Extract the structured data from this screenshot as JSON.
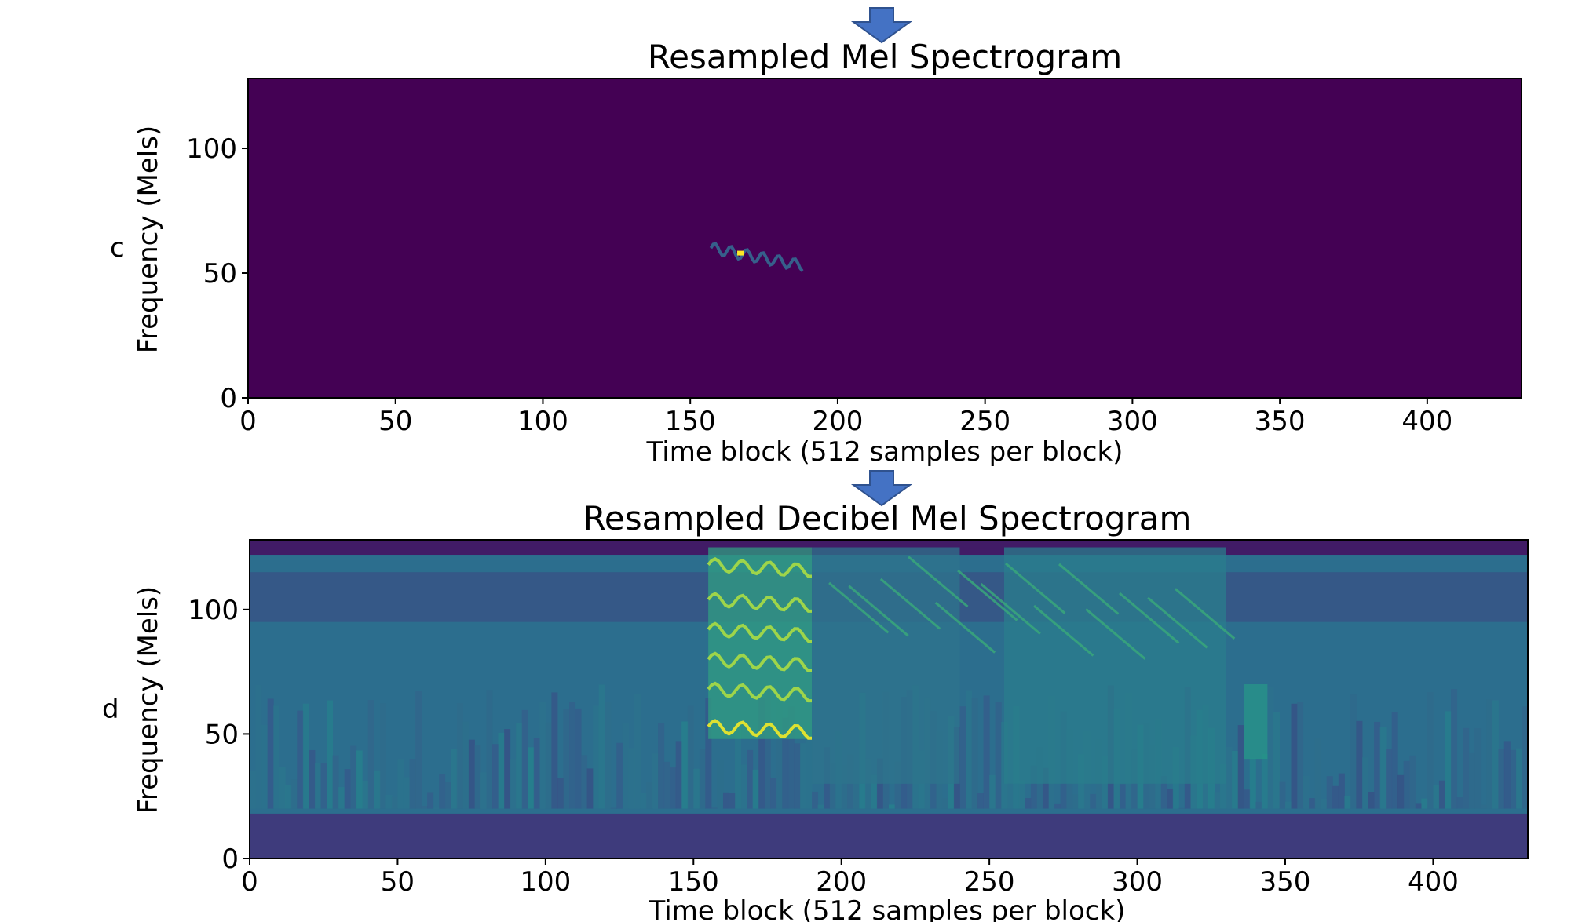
{
  "colors": {
    "arrow": "#4472c4",
    "arrow_stroke": "#2f528f",
    "viridis_dark": "#440154",
    "axis": "#000000"
  },
  "panels": [
    {
      "letter": "c"
    },
    {
      "letter": "d"
    }
  ],
  "chart_data": [
    {
      "type": "heatmap",
      "title": "Resampled Mel Spectrogram",
      "xlabel": "Time block (512 samples per block)",
      "ylabel": "Frequency (Mels)",
      "xlim": [
        0,
        432
      ],
      "ylim": [
        0,
        128
      ],
      "xticks": [
        0,
        50,
        100,
        150,
        200,
        250,
        300,
        350,
        400
      ],
      "yticks": [
        0,
        50,
        100
      ],
      "xtick_labels": [
        "0",
        "50",
        "100",
        "150",
        "200",
        "250",
        "300",
        "350",
        "400"
      ],
      "ytick_labels": [
        "0",
        "50",
        "100"
      ],
      "colormap": "viridis",
      "scale": "linear power",
      "features": [
        {
          "desc": "bird call contour",
          "time_start": 157,
          "time_end": 188,
          "mel_start": 60,
          "mel_end": 53,
          "intensity": 0.9
        },
        {
          "desc": "brief peak",
          "time": 167,
          "mel": 58,
          "intensity": 1.0
        }
      ]
    },
    {
      "type": "heatmap",
      "title": "Resampled Decibel Mel Spectrogram",
      "xlabel": "Time block (512 samples per block)",
      "ylabel": "Frequency (Mels)",
      "xlim": [
        0,
        432
      ],
      "ylim": [
        0,
        128
      ],
      "xticks": [
        0,
        50,
        100,
        150,
        200,
        250,
        300,
        350,
        400
      ],
      "yticks": [
        0,
        50,
        100
      ],
      "xtick_labels": [
        "0",
        "50",
        "100",
        "150",
        "200",
        "250",
        "300",
        "350",
        "400"
      ],
      "ytick_labels": [
        "0",
        "50",
        "100"
      ],
      "colormap": "viridis",
      "scale": "decibel",
      "features": [
        {
          "desc": "strong bird call block",
          "time_start": 155,
          "time_end": 190,
          "mel_start": 48,
          "mel_end": 125,
          "intensity": 0.8
        },
        {
          "desc": "descending chirps",
          "time_start": 190,
          "time_end": 240,
          "mel_start": 30,
          "mel_end": 125,
          "intensity": 0.55
        },
        {
          "desc": "mid activity",
          "time_start": 255,
          "time_end": 330,
          "mel_start": 30,
          "mel_end": 125,
          "intensity": 0.6
        },
        {
          "desc": "call at 340",
          "time_start": 336,
          "time_end": 344,
          "mel_start": 40,
          "mel_end": 70,
          "intensity": 0.75
        }
      ]
    }
  ]
}
